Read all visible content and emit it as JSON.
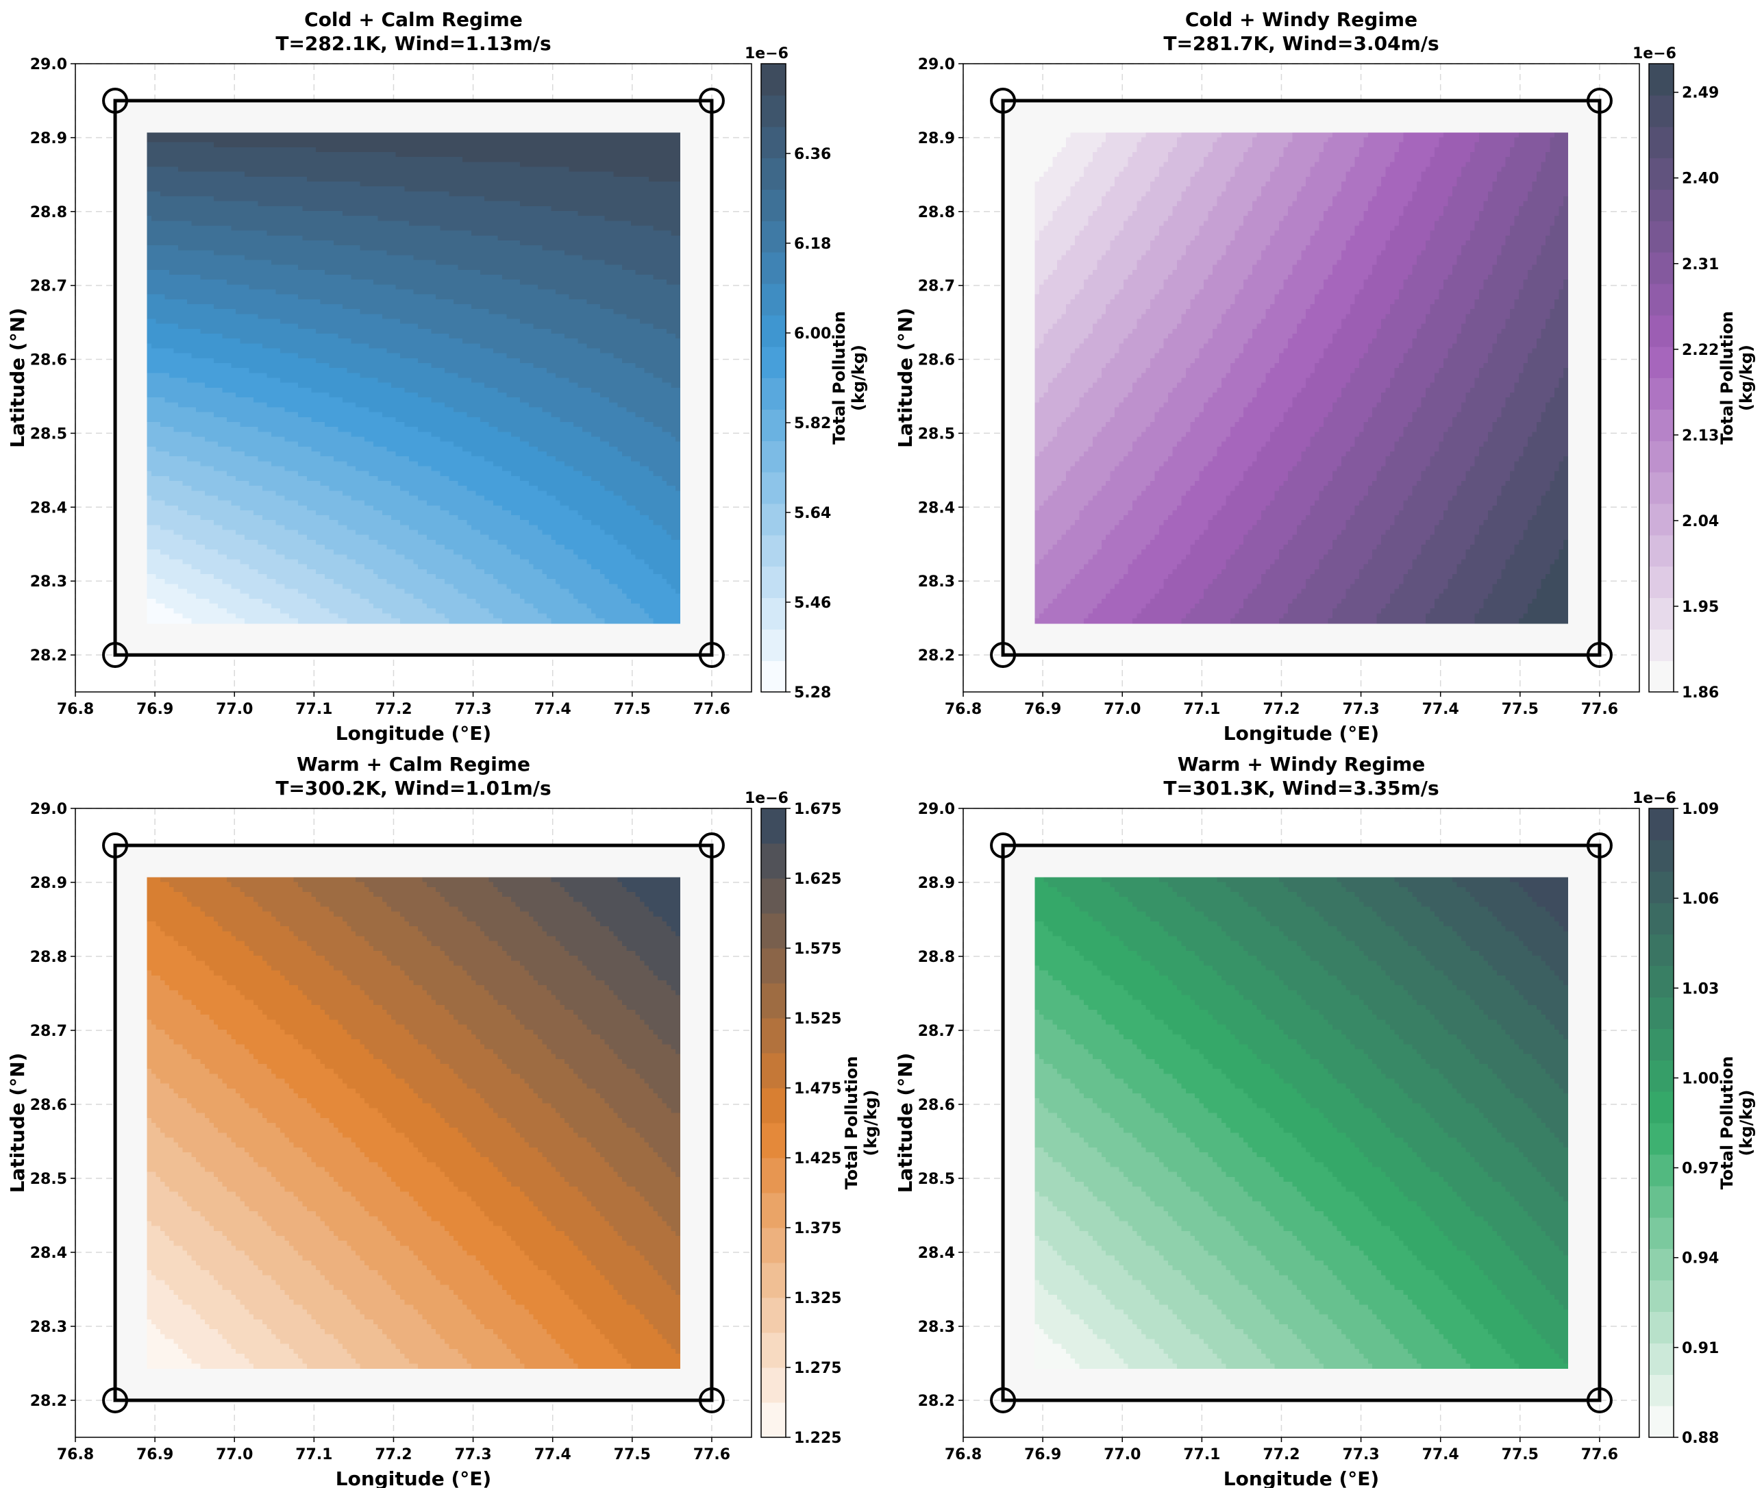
{
  "figure": {
    "layout": "2x2 grid of filled contour maps",
    "axes_shared": {
      "xlabel": "Longitude (°E)",
      "ylabel": "Latitude (°N)",
      "xlim": [
        76.8,
        77.65
      ],
      "ylim": [
        28.15,
        29.0
      ],
      "xticks": [
        "76.8",
        "76.9",
        "77.0",
        "77.1",
        "77.2",
        "77.3",
        "77.4",
        "77.5",
        "77.6"
      ],
      "yticks": [
        "28.2",
        "28.3",
        "28.4",
        "28.5",
        "28.6",
        "28.7",
        "28.8",
        "28.9",
        "29.0"
      ],
      "grid": "dashed, light gray",
      "colorbar_label_line1": "Total Pollution",
      "colorbar_label_line2": "(kg/kg)",
      "colorbar_exponent": "1e−6"
    },
    "boundary_box": {
      "lon": [
        76.85,
        77.6
      ],
      "lat": [
        28.2,
        28.95
      ],
      "corner_markers": "open circles"
    },
    "data_extent": {
      "lon": [
        76.89,
        77.56
      ],
      "lat": [
        28.243,
        28.907
      ]
    }
  },
  "chart_data": [
    {
      "type": "heatmap",
      "title_line1": "Cold + Calm Regime",
      "title_line2": "T=282.1K, Wind=1.13m/s",
      "xlabel": "Longitude (°E)",
      "ylabel": "Latitude (°N)",
      "colorbar": {
        "min": 5.28,
        "max": 6.54,
        "levels": 21,
        "ticks": [
          "5.28",
          "5.46",
          "5.64",
          "5.82",
          "6.00",
          "6.18",
          "6.36"
        ],
        "colors": [
          "#f7fbff",
          "#3f9bd8",
          "#3e4c5e"
        ],
        "color_mid_at": 0.55
      },
      "field": {
        "type": "bilinear-ish",
        "coef_a": 0.31,
        "coef_b": 0.81,
        "coef_c": -0.55,
        "corner_low": "bottom-left",
        "corner_high": "top-right"
      }
    },
    {
      "type": "heatmap",
      "title_line1": "Cold + Windy Regime",
      "title_line2": "T=281.7K, Wind=3.04m/s",
      "xlabel": "Longitude (°E)",
      "ylabel": "Latitude (°N)",
      "colorbar": {
        "min": 1.86,
        "max": 2.52,
        "levels": 21,
        "ticks": [
          "1.86",
          "1.95",
          "2.04",
          "2.13",
          "2.22",
          "2.31",
          "2.40",
          "2.49"
        ],
        "colors": [
          "#f7f7f7",
          "#a25fb9",
          "#3e4c5e"
        ],
        "color_mid_at": 0.55
      },
      "field": {
        "type": "bilinear-ish",
        "coef_a": 0.76,
        "coef_b": 0.44,
        "coef_c": -0.2,
        "corner_low": "top-left",
        "corner_high": "bottom-right"
      }
    },
    {
      "type": "heatmap",
      "title_line1": "Warm + Calm Regime",
      "title_line2": "T=300.2K, Wind=1.01m/s",
      "xlabel": "Longitude (°E)",
      "ylabel": "Latitude (°N)",
      "colorbar": {
        "min": 1.225,
        "max": 1.675,
        "levels": 19,
        "ticks": [
          "1.225",
          "1.275",
          "1.325",
          "1.375",
          "1.425",
          "1.475",
          "1.525",
          "1.575",
          "1.625",
          "1.675"
        ],
        "colors": [
          "#fdf5ee",
          "#e2822f",
          "#3e4c5e"
        ],
        "color_mid_at": 0.5
      },
      "field": {
        "type": "bilinear-ish",
        "coef_a": 0.55,
        "coef_b": 0.55,
        "coef_c": -0.1,
        "corner_low": "bottom-left",
        "corner_high": "top-right"
      }
    },
    {
      "type": "heatmap",
      "title_line1": "Warm + Windy Regime",
      "title_line2": "T=301.3K, Wind=3.35m/s",
      "xlabel": "Longitude (°E)",
      "ylabel": "Latitude (°N)",
      "colorbar": {
        "min": 0.88,
        "max": 1.09,
        "levels": 21,
        "ticks": [
          "0.88",
          "0.91",
          "0.94",
          "0.97",
          "1.00",
          "1.03",
          "1.06",
          "1.09"
        ],
        "colors": [
          "#f5f9f6",
          "#34ad6a",
          "#3e4c5e"
        ],
        "color_mid_at": 0.5
      },
      "field": {
        "type": "bilinear-ish",
        "coef_a": 0.55,
        "coef_b": 0.55,
        "coef_c": -0.1,
        "corner_low": "bottom-left",
        "corner_high": "top-right"
      }
    }
  ]
}
